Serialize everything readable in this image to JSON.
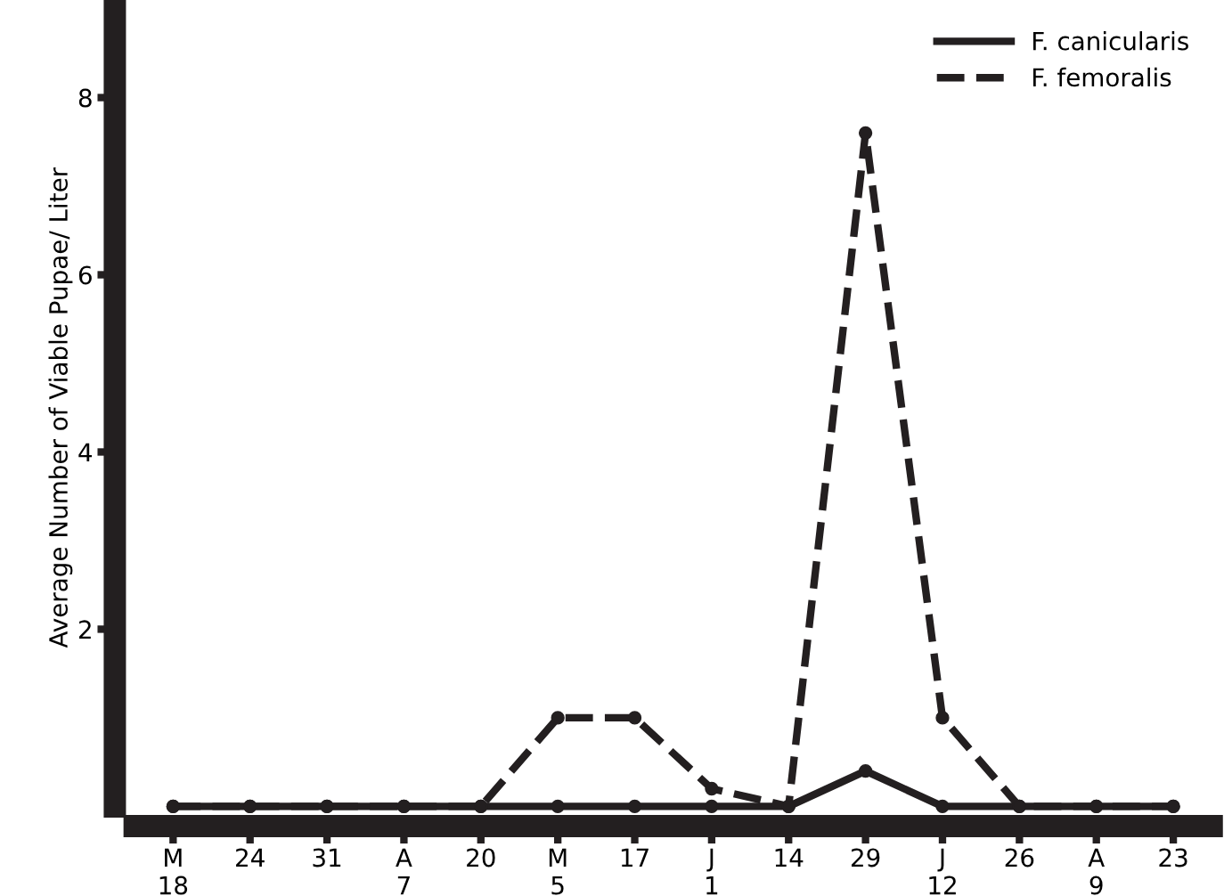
{
  "chart_data": {
    "type": "line",
    "ylabel": "Average Number of Viable Pupae/ Liter",
    "categories": [
      "M\n18",
      "24",
      "31",
      "A\n7",
      "20",
      "M\n5",
      "17",
      "J\n1",
      "14",
      "29",
      "J\n12",
      "26",
      "A\n9",
      "23"
    ],
    "series": [
      {
        "name": "F. canicularis",
        "color": "#231f20",
        "line_style": "solid",
        "values": [
          0,
          0,
          0,
          0,
          0,
          0,
          0,
          0,
          0,
          0.4,
          0,
          0,
          0,
          0
        ]
      },
      {
        "name": "F. femoralis",
        "color": "#231f20",
        "line_style": "dashed",
        "values": [
          0,
          0,
          0,
          0,
          0,
          1,
          1,
          0.2,
          0,
          7.6,
          1,
          0,
          0,
          0
        ]
      }
    ],
    "ylim": [
      0,
      9
    ],
    "yticks": [
      2,
      4,
      6,
      8
    ],
    "grid": false,
    "legend": "top right",
    "marker": "circle"
  }
}
